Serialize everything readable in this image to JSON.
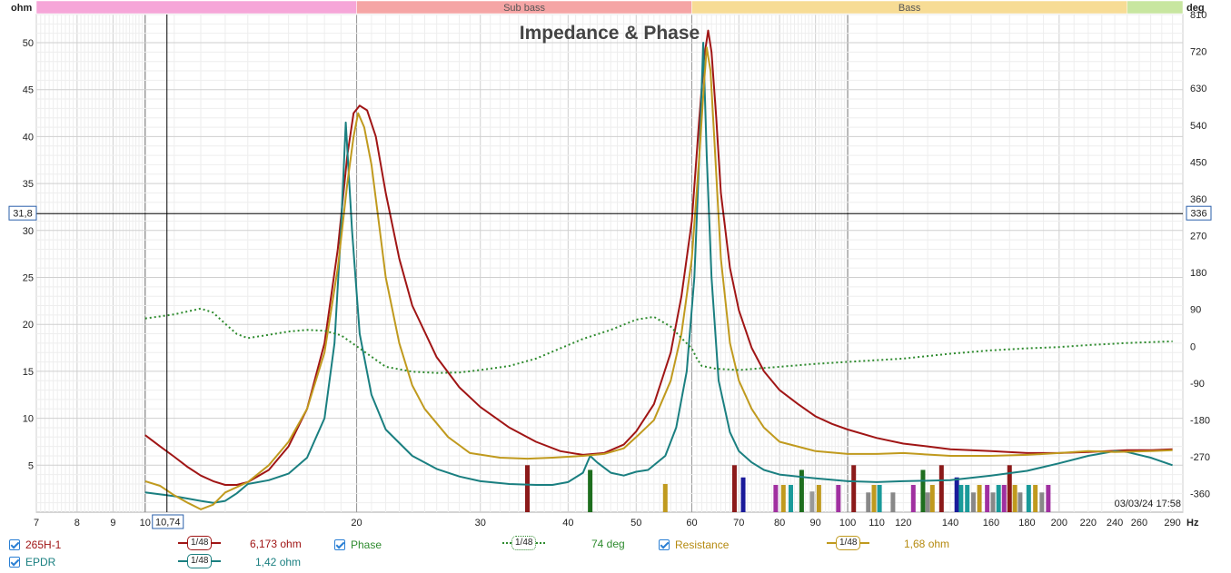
{
  "chart_data": {
    "type": "line",
    "title": "Impedance & Phase",
    "left_axis_unit": "ohm",
    "right_axis_unit": "deg",
    "x_unit": "Hz",
    "x_scale": "log",
    "xlim": [
      7,
      300
    ],
    "ylim_left": [
      0,
      53
    ],
    "ylim_right": [
      -405,
      810
    ],
    "x_ticks": [
      7,
      8,
      9,
      10,
      20,
      30,
      40,
      50,
      60,
      70,
      80,
      90,
      100,
      110,
      120,
      140,
      160,
      180,
      200,
      220,
      240,
      260,
      290
    ],
    "x_tick_labels": [
      "7",
      "8",
      "9",
      "10",
      "20",
      "30",
      "40",
      "50",
      "60",
      "70",
      "80",
      "90",
      "100",
      "110",
      "120",
      "140",
      "160",
      "180",
      "200",
      "220",
      "240",
      "260",
      "290"
    ],
    "left_ticks": [
      5,
      10,
      15,
      20,
      25,
      30,
      35,
      40,
      45,
      50
    ],
    "right_ticks": [
      -360,
      -270,
      -180,
      -90,
      0,
      90,
      180,
      270,
      360,
      450,
      540,
      630,
      720,
      810
    ],
    "grid": true,
    "bands": [
      {
        "label": "",
        "from": 7,
        "to": 20,
        "color": "#f6a6d8"
      },
      {
        "label": "Sub bass",
        "from": 20,
        "to": 60,
        "color": "#f5a5a5"
      },
      {
        "label": "Bass",
        "from": 60,
        "to": 250,
        "color": "#f7dc95"
      },
      {
        "label": "",
        "from": 250,
        "to": 300,
        "color": "#c8e6a0"
      }
    ],
    "cursor": {
      "x": 10.74,
      "x_label": "10,74",
      "y_left": 31.8,
      "y_left_label": "31,8",
      "y_right_label": "336"
    },
    "timestamp": "03/03/24 17:58",
    "series": [
      {
        "name": "265H-1",
        "axis": "left",
        "color": "#a01515",
        "style": "solid",
        "points": [
          [
            10,
            8.2
          ],
          [
            10.5,
            7.0
          ],
          [
            11,
            5.9
          ],
          [
            11.5,
            4.8
          ],
          [
            12,
            3.9
          ],
          [
            12.5,
            3.3
          ],
          [
            13,
            2.9
          ],
          [
            13.5,
            2.9
          ],
          [
            14,
            3.2
          ],
          [
            15,
            4.5
          ],
          [
            16,
            7.0
          ],
          [
            17,
            11
          ],
          [
            18,
            18
          ],
          [
            18.8,
            28
          ],
          [
            19.4,
            38
          ],
          [
            19.8,
            42.5
          ],
          [
            20.2,
            43.3
          ],
          [
            20.7,
            42.8
          ],
          [
            21.3,
            40
          ],
          [
            22,
            34
          ],
          [
            23,
            27
          ],
          [
            24,
            22
          ],
          [
            26,
            16.5
          ],
          [
            28,
            13.3
          ],
          [
            30,
            11.2
          ],
          [
            33,
            9.0
          ],
          [
            36,
            7.5
          ],
          [
            39,
            6.5
          ],
          [
            42,
            6.1
          ],
          [
            45,
            6.3
          ],
          [
            48,
            7.2
          ],
          [
            50,
            8.6
          ],
          [
            53,
            11.5
          ],
          [
            56,
            17
          ],
          [
            58,
            23
          ],
          [
            60,
            31
          ],
          [
            61.5,
            42
          ],
          [
            62.5,
            48.5
          ],
          [
            63.3,
            51.3
          ],
          [
            64,
            49
          ],
          [
            65,
            42
          ],
          [
            66,
            34
          ],
          [
            68,
            26
          ],
          [
            70,
            21.5
          ],
          [
            73,
            17.5
          ],
          [
            76,
            15
          ],
          [
            80,
            13
          ],
          [
            85,
            11.5
          ],
          [
            90,
            10.2
          ],
          [
            95,
            9.4
          ],
          [
            100,
            8.8
          ],
          [
            110,
            7.9
          ],
          [
            120,
            7.3
          ],
          [
            130,
            7.0
          ],
          [
            140,
            6.7
          ],
          [
            160,
            6.5
          ],
          [
            180,
            6.3
          ],
          [
            200,
            6.3
          ],
          [
            220,
            6.4
          ],
          [
            250,
            6.6
          ],
          [
            270,
            6.6
          ],
          [
            290,
            6.7
          ]
        ]
      },
      {
        "name": "EPDR",
        "axis": "left",
        "color": "#1a7f80",
        "style": "solid",
        "points": [
          [
            10,
            2.1
          ],
          [
            11,
            1.7
          ],
          [
            12,
            1.2
          ],
          [
            12.5,
            1.0
          ],
          [
            13,
            1.2
          ],
          [
            13.5,
            2.0
          ],
          [
            14,
            3.0
          ],
          [
            15,
            3.4
          ],
          [
            16,
            4.1
          ],
          [
            17,
            5.8
          ],
          [
            18,
            10
          ],
          [
            18.6,
            18
          ],
          [
            19,
            30
          ],
          [
            19.3,
            41.5
          ],
          [
            19.7,
            30
          ],
          [
            20.2,
            19
          ],
          [
            21,
            12.5
          ],
          [
            22,
            8.8
          ],
          [
            24,
            6.0
          ],
          [
            26,
            4.6
          ],
          [
            28,
            3.8
          ],
          [
            30,
            3.3
          ],
          [
            33,
            3.0
          ],
          [
            36,
            2.9
          ],
          [
            38,
            2.9
          ],
          [
            40,
            3.2
          ],
          [
            42,
            4.2
          ],
          [
            43,
            6.0
          ],
          [
            44,
            5.3
          ],
          [
            46,
            4.2
          ],
          [
            48,
            3.9
          ],
          [
            50,
            4.3
          ],
          [
            52,
            4.5
          ],
          [
            55,
            6.0
          ],
          [
            57,
            9.0
          ],
          [
            59,
            15
          ],
          [
            60.5,
            25
          ],
          [
            61.5,
            38
          ],
          [
            62.3,
            50
          ],
          [
            63,
            38
          ],
          [
            64,
            25
          ],
          [
            65.5,
            14
          ],
          [
            68,
            8.5
          ],
          [
            70,
            6.5
          ],
          [
            73,
            5.3
          ],
          [
            76,
            4.5
          ],
          [
            80,
            4.0
          ],
          [
            90,
            3.6
          ],
          [
            100,
            3.3
          ],
          [
            110,
            3.2
          ],
          [
            120,
            3.3
          ],
          [
            140,
            3.4
          ],
          [
            160,
            3.9
          ],
          [
            180,
            4.4
          ],
          [
            200,
            5.2
          ],
          [
            220,
            6.0
          ],
          [
            240,
            6.5
          ],
          [
            250,
            6.4
          ],
          [
            270,
            5.8
          ],
          [
            290,
            5.0
          ]
        ]
      },
      {
        "name": "Resistance",
        "axis": "left",
        "color": "#c09a1e",
        "style": "solid",
        "points": [
          [
            10,
            3.3
          ],
          [
            10.5,
            2.8
          ],
          [
            11,
            1.8
          ],
          [
            11.5,
            1.0
          ],
          [
            12,
            0.3
          ],
          [
            12.5,
            0.8
          ],
          [
            13,
            2.1
          ],
          [
            14,
            3.2
          ],
          [
            15,
            5.0
          ],
          [
            16,
            7.5
          ],
          [
            17,
            11
          ],
          [
            18,
            17
          ],
          [
            18.8,
            26
          ],
          [
            19.4,
            35
          ],
          [
            19.8,
            40
          ],
          [
            20.1,
            42.5
          ],
          [
            20.5,
            41
          ],
          [
            21,
            37
          ],
          [
            21.5,
            31
          ],
          [
            22,
            25
          ],
          [
            23,
            18
          ],
          [
            24,
            13.5
          ],
          [
            25,
            11
          ],
          [
            27,
            8
          ],
          [
            29,
            6.3
          ],
          [
            32,
            5.8
          ],
          [
            35,
            5.7
          ],
          [
            38,
            5.8
          ],
          [
            40,
            5.9
          ],
          [
            42,
            6.0
          ],
          [
            45,
            6.2
          ],
          [
            48,
            6.8
          ],
          [
            50,
            8.0
          ],
          [
            53,
            9.8
          ],
          [
            56,
            14
          ],
          [
            58,
            19
          ],
          [
            60,
            27
          ],
          [
            61.5,
            38
          ],
          [
            62.5,
            46
          ],
          [
            63,
            49.5
          ],
          [
            63.8,
            47
          ],
          [
            65,
            36
          ],
          [
            66,
            27
          ],
          [
            68,
            18
          ],
          [
            70,
            14
          ],
          [
            73,
            11
          ],
          [
            76,
            9
          ],
          [
            80,
            7.5
          ],
          [
            90,
            6.5
          ],
          [
            100,
            6.2
          ],
          [
            110,
            6.2
          ],
          [
            120,
            6.3
          ],
          [
            140,
            6.0
          ],
          [
            160,
            6.0
          ],
          [
            180,
            6.1
          ],
          [
            200,
            6.3
          ],
          [
            220,
            6.5
          ],
          [
            240,
            6.4
          ],
          [
            270,
            6.5
          ],
          [
            290,
            6.6
          ]
        ]
      },
      {
        "name": "Phase",
        "axis": "right",
        "color": "#2e8b2e",
        "style": "dotted",
        "points": [
          [
            10,
            68
          ],
          [
            11,
            78
          ],
          [
            12,
            92
          ],
          [
            12.5,
            82
          ],
          [
            13,
            55
          ],
          [
            13.5,
            30
          ],
          [
            14,
            20
          ],
          [
            15,
            28
          ],
          [
            16,
            36
          ],
          [
            17,
            40
          ],
          [
            18,
            38
          ],
          [
            19,
            27
          ],
          [
            20,
            0
          ],
          [
            22,
            -50
          ],
          [
            24,
            -62
          ],
          [
            26,
            -65
          ],
          [
            28,
            -64
          ],
          [
            30,
            -58
          ],
          [
            33,
            -48
          ],
          [
            36,
            -30
          ],
          [
            39,
            -5
          ],
          [
            42,
            18
          ],
          [
            46,
            40
          ],
          [
            50,
            65
          ],
          [
            53,
            72
          ],
          [
            56,
            48
          ],
          [
            58,
            20
          ],
          [
            60,
            -5
          ],
          [
            61,
            -30
          ],
          [
            62,
            -48
          ],
          [
            65,
            -55
          ],
          [
            70,
            -58
          ],
          [
            80,
            -50
          ],
          [
            90,
            -43
          ],
          [
            100,
            -38
          ],
          [
            120,
            -30
          ],
          [
            140,
            -18
          ],
          [
            160,
            -10
          ],
          [
            180,
            -5
          ],
          [
            200,
            -2
          ],
          [
            220,
            3
          ],
          [
            250,
            8
          ],
          [
            290,
            12
          ]
        ]
      }
    ],
    "impulse_bars": [
      {
        "x": 35,
        "y": 5.0,
        "color": "#8b1a1a"
      },
      {
        "x": 43,
        "y": 4.5,
        "color": "#1e6e1e"
      },
      {
        "x": 55,
        "y": 3.0,
        "color": "#c09a1e"
      },
      {
        "x": 69,
        "y": 5.0,
        "color": "#8b1a1a"
      },
      {
        "x": 71,
        "y": 3.7,
        "color": "#1a1a9a"
      },
      {
        "x": 79,
        "y": 2.9,
        "color": "#a030a0"
      },
      {
        "x": 81,
        "y": 2.9,
        "color": "#c09a1e"
      },
      {
        "x": 83,
        "y": 2.9,
        "color": "#1a9a9a"
      },
      {
        "x": 86,
        "y": 4.5,
        "color": "#1e6e1e"
      },
      {
        "x": 89,
        "y": 2.2,
        "color": "#999999"
      },
      {
        "x": 91,
        "y": 2.9,
        "color": "#c09a1e"
      },
      {
        "x": 97,
        "y": 2.9,
        "color": "#a030a0"
      },
      {
        "x": 102,
        "y": 5.0,
        "color": "#8b1a1a"
      },
      {
        "x": 107,
        "y": 2.1,
        "color": "#888888"
      },
      {
        "x": 109,
        "y": 2.9,
        "color": "#c09a1e"
      },
      {
        "x": 111,
        "y": 2.9,
        "color": "#1a9a9a"
      },
      {
        "x": 116,
        "y": 2.1,
        "color": "#888888"
      },
      {
        "x": 124,
        "y": 2.9,
        "color": "#a030a0"
      },
      {
        "x": 128,
        "y": 4.5,
        "color": "#1e6e1e"
      },
      {
        "x": 130,
        "y": 2.1,
        "color": "#888888"
      },
      {
        "x": 132,
        "y": 2.9,
        "color": "#c09a1e"
      },
      {
        "x": 136,
        "y": 5.0,
        "color": "#8b1a1a"
      },
      {
        "x": 143,
        "y": 3.7,
        "color": "#1a1a9a"
      },
      {
        "x": 145,
        "y": 2.9,
        "color": "#1a9a9a"
      },
      {
        "x": 148,
        "y": 2.9,
        "color": "#1a9a9a"
      },
      {
        "x": 151,
        "y": 2.1,
        "color": "#888888"
      },
      {
        "x": 154,
        "y": 2.9,
        "color": "#c09a1e"
      },
      {
        "x": 158,
        "y": 2.9,
        "color": "#a030a0"
      },
      {
        "x": 161,
        "y": 2.1,
        "color": "#888888"
      },
      {
        "x": 164,
        "y": 2.9,
        "color": "#1a9a9a"
      },
      {
        "x": 167,
        "y": 2.9,
        "color": "#a030a0"
      },
      {
        "x": 170,
        "y": 5.0,
        "color": "#8b1a1a"
      },
      {
        "x": 173,
        "y": 2.9,
        "color": "#c09a1e"
      },
      {
        "x": 176,
        "y": 2.1,
        "color": "#888888"
      },
      {
        "x": 181,
        "y": 2.9,
        "color": "#1a9a9a"
      },
      {
        "x": 185,
        "y": 2.9,
        "color": "#c09a1e"
      },
      {
        "x": 189,
        "y": 2.1,
        "color": "#888888"
      },
      {
        "x": 193,
        "y": 2.9,
        "color": "#a030a0"
      }
    ]
  },
  "legend": {
    "items": [
      {
        "name": "265H-1",
        "color": "#a01515",
        "smoothing": "1/48",
        "value": "6,173 ohm"
      },
      {
        "name": "Phase",
        "color": "#2e8b2e",
        "smoothing": "1/48",
        "value": "74 deg"
      },
      {
        "name": "Resistance",
        "color": "#c09a1e",
        "smoothing": "1/48",
        "value": "1,68 ohm"
      },
      {
        "name": "EPDR",
        "color": "#1a7f80",
        "smoothing": "1/48",
        "value": "1,42 ohm"
      }
    ]
  }
}
